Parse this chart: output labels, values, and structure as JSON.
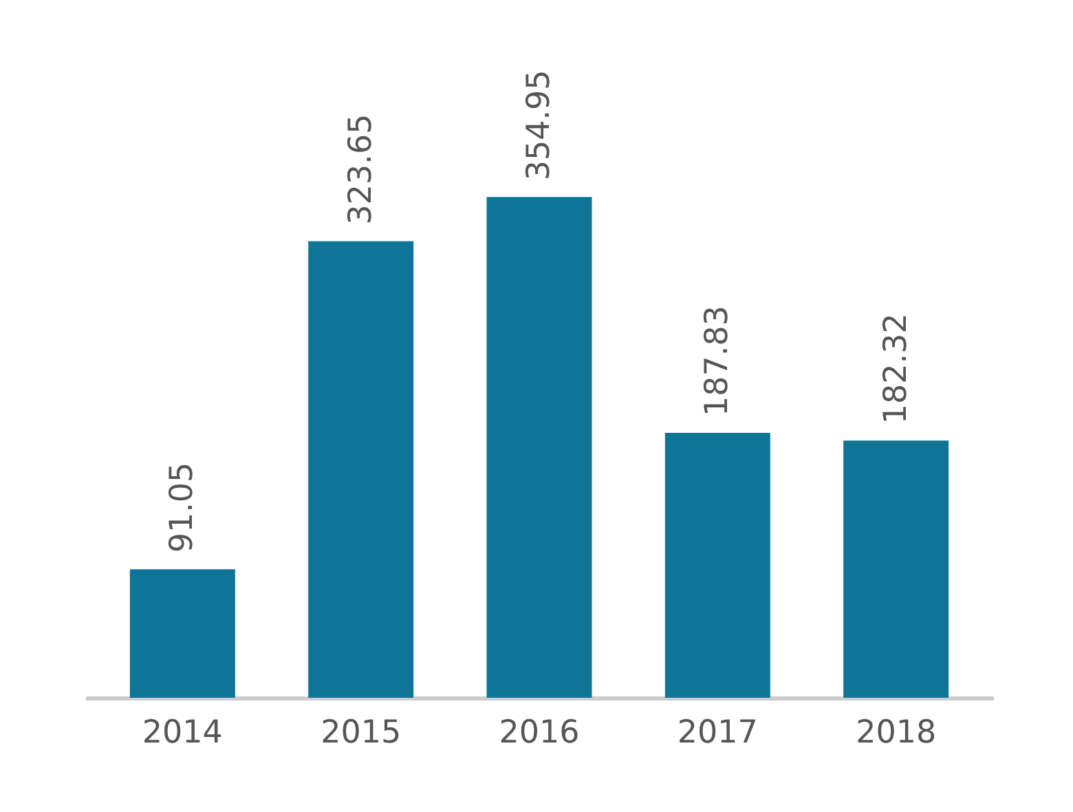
{
  "chart_data": {
    "type": "bar",
    "categories": [
      "2014",
      "2015",
      "2016",
      "2017",
      "2018"
    ],
    "values": [
      91.05,
      323.65,
      354.95,
      187.83,
      182.32
    ],
    "color": "#0e7597",
    "data_labels": true
  }
}
